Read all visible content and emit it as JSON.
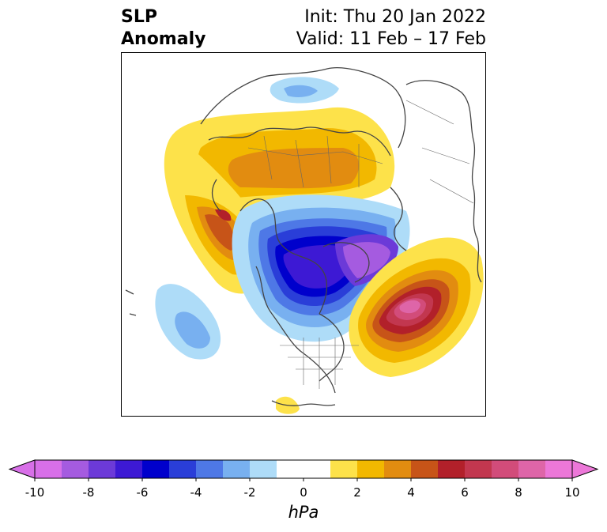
{
  "title": {
    "left_line1": "SLP",
    "left_line2": "Anomaly",
    "right_line1": "Init: Thu 20 Jan 2022",
    "right_line2": "Valid: 11 Feb – 17 Feb"
  },
  "colorbar": {
    "units": "hPa",
    "tick_labels": [
      "-10",
      "-8",
      "-6",
      "-4",
      "-2",
      "0",
      "2",
      "4",
      "6",
      "8",
      "10"
    ],
    "bins": [
      {
        "from": -10,
        "to": -9,
        "color": "#d86fe8"
      },
      {
        "from": -9,
        "to": -8,
        "color": "#a55be0"
      },
      {
        "from": -8,
        "to": -7,
        "color": "#6c3ad8"
      },
      {
        "from": -7,
        "to": -6,
        "color": "#3d19d4"
      },
      {
        "from": -6,
        "to": -5,
        "color": "#0000cc"
      },
      {
        "from": -5,
        "to": -4,
        "color": "#2a3ed8"
      },
      {
        "from": -4,
        "to": -3,
        "color": "#4e78e6"
      },
      {
        "from": -3,
        "to": -2,
        "color": "#78b0f0"
      },
      {
        "from": -2,
        "to": -1,
        "color": "#aedcf8"
      },
      {
        "from": -1,
        "to": 1,
        "color": "#ffffff"
      },
      {
        "from": 1,
        "to": 2,
        "color": "#fde24a"
      },
      {
        "from": 2,
        "to": 3,
        "color": "#f2b800"
      },
      {
        "from": 3,
        "to": 4,
        "color": "#e28c10"
      },
      {
        "from": 4,
        "to": 5,
        "color": "#c75418"
      },
      {
        "from": 5,
        "to": 6,
        "color": "#b2202a"
      },
      {
        "from": 6,
        "to": 7,
        "color": "#c2374f"
      },
      {
        "from": 7,
        "to": 8,
        "color": "#d24c7a"
      },
      {
        "from": 8,
        "to": 9,
        "color": "#de65a8"
      },
      {
        "from": 9,
        "to": 10,
        "color": "#ec77d8"
      }
    ],
    "extend_low_color": "#d86fe8",
    "extend_high_color": "#ec77d8"
  },
  "map": {
    "projection": "north-polar stereographic",
    "features": [
      "high-anomaly-north-atlantic",
      "low-anomaly-canada-greenland",
      "high-anomaly-pacific-alaska",
      "high-anomaly-siberia",
      "low-anomaly-north-pacific"
    ]
  }
}
